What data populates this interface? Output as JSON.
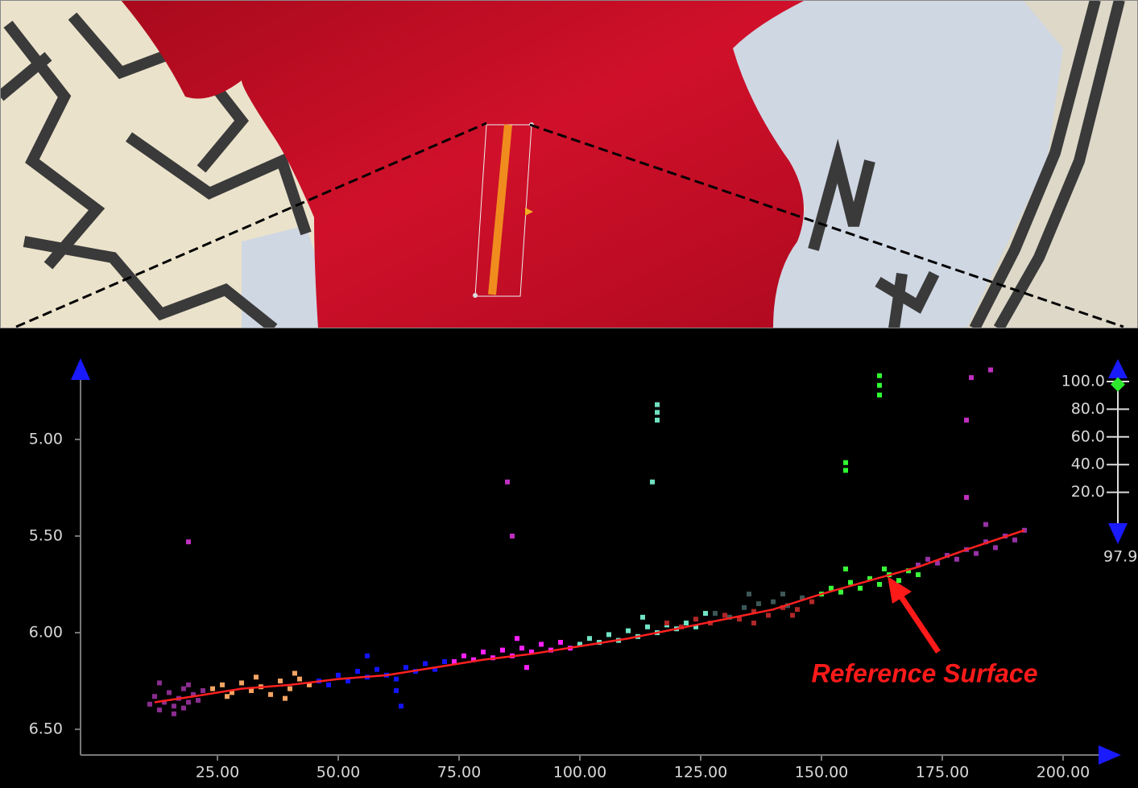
{
  "profile_chart": {
    "type": "scatter",
    "xlim": [
      -3.33,
      208.33
    ],
    "ylim": [
      6.633,
      4.642
    ],
    "xticks": [
      {
        "value": 25,
        "label": "25.00"
      },
      {
        "value": 50,
        "label": "50.00"
      },
      {
        "value": 75,
        "label": "75.00"
      },
      {
        "value": 100,
        "label": "100.00"
      },
      {
        "value": 125,
        "label": "125.00"
      },
      {
        "value": 150,
        "label": "150.00"
      },
      {
        "value": 175,
        "label": "175.00"
      },
      {
        "value": 200,
        "label": "200.00"
      }
    ],
    "yticks": [
      {
        "value": 5,
        "label": "5.00"
      },
      {
        "value": 5.5,
        "label": "5.50"
      },
      {
        "value": 6,
        "label": "6.00"
      },
      {
        "value": 6.5,
        "label": "6.50"
      }
    ],
    "series": [
      {
        "color": "#8a2d8f",
        "x": [
          11,
          12,
          13,
          14,
          15,
          16,
          17,
          18,
          19,
          20,
          21,
          22,
          13,
          16,
          19,
          18
        ],
        "y": [
          6.37,
          6.33,
          6.4,
          6.36,
          6.31,
          6.38,
          6.34,
          6.29,
          6.36,
          6.32,
          6.35,
          6.3,
          6.26,
          6.42,
          6.27,
          6.39
        ]
      },
      {
        "color": "#f4a463",
        "x": [
          24,
          26,
          28,
          30,
          32,
          34,
          36,
          38,
          40,
          42,
          44,
          27,
          33,
          39,
          41
        ],
        "y": [
          6.29,
          6.27,
          6.31,
          6.26,
          6.3,
          6.28,
          6.32,
          6.25,
          6.29,
          6.24,
          6.27,
          6.33,
          6.23,
          6.34,
          6.21
        ]
      },
      {
        "color": "#1414ff",
        "x": [
          46,
          48,
          50,
          52,
          54,
          56,
          58,
          60,
          62,
          64,
          66,
          68,
          70,
          72,
          56,
          62,
          63
        ],
        "y": [
          6.25,
          6.27,
          6.22,
          6.25,
          6.2,
          6.23,
          6.19,
          6.22,
          6.24,
          6.18,
          6.2,
          6.16,
          6.19,
          6.15,
          6.12,
          6.3,
          6.38
        ]
      },
      {
        "color": "#ff22ff",
        "x": [
          74,
          76,
          78,
          80,
          82,
          84,
          86,
          88,
          90,
          92,
          94,
          96,
          98,
          87,
          89
        ],
        "y": [
          6.15,
          6.12,
          6.14,
          6.1,
          6.13,
          6.09,
          6.12,
          6.08,
          6.1,
          6.06,
          6.09,
          6.05,
          6.08,
          6.03,
          6.18
        ]
      },
      {
        "color": "#72e4c6",
        "x": [
          100,
          102,
          104,
          106,
          108,
          110,
          112,
          114,
          116,
          118,
          120,
          122,
          124,
          113,
          126
        ],
        "y": [
          6.06,
          6.03,
          6.05,
          6.01,
          6.04,
          5.99,
          6.02,
          5.97,
          6.0,
          5.96,
          5.98,
          5.95,
          5.97,
          5.92,
          5.9
        ]
      },
      {
        "color": "#b02828",
        "x": [
          118,
          121,
          124,
          127,
          130,
          133,
          136,
          139,
          142,
          145,
          148,
          136,
          144
        ],
        "y": [
          5.95,
          5.97,
          5.93,
          5.95,
          5.91,
          5.93,
          5.89,
          5.91,
          5.87,
          5.88,
          5.84,
          5.95,
          5.91
        ]
      },
      {
        "color": "#3d5656",
        "x": [
          128,
          131,
          134,
          137,
          140,
          143,
          146,
          135,
          142
        ],
        "y": [
          5.9,
          5.92,
          5.87,
          5.85,
          5.84,
          5.86,
          5.82,
          5.8,
          5.8
        ]
      },
      {
        "color": "#3aff3a",
        "x": [
          150,
          152,
          154,
          156,
          158,
          160,
          162,
          164,
          166,
          168,
          170,
          155,
          163
        ],
        "y": [
          5.8,
          5.77,
          5.79,
          5.74,
          5.77,
          5.72,
          5.75,
          5.7,
          5.73,
          5.68,
          5.7,
          5.67,
          5.67
        ]
      },
      {
        "color": "#9632a5",
        "x": [
          170,
          172,
          174,
          176,
          178,
          180,
          182,
          184,
          186,
          188,
          190,
          192,
          184
        ],
        "y": [
          5.65,
          5.62,
          5.64,
          5.6,
          5.62,
          5.57,
          5.59,
          5.53,
          5.56,
          5.5,
          5.52,
          5.47,
          5.44
        ]
      },
      {
        "color": "#c030c0",
        "x": [
          19,
          85,
          86,
          180,
          185,
          180,
          181
        ],
        "y": [
          5.53,
          5.22,
          5.5,
          4.9,
          4.64,
          5.3,
          4.68
        ]
      },
      {
        "color": "#70e0c0",
        "x": [
          116,
          116,
          116,
          115
        ],
        "y": [
          4.82,
          4.86,
          4.9,
          5.22
        ]
      },
      {
        "color": "#30ff30",
        "x": [
          162,
          162,
          162,
          155,
          155
        ],
        "y": [
          4.67,
          4.72,
          4.77,
          5.12,
          5.16
        ]
      }
    ],
    "reference_surface": {
      "color": "#ff2020",
      "x": [
        12,
        20,
        30,
        40,
        50,
        60,
        70,
        80,
        90,
        100,
        110,
        120,
        130,
        140,
        150,
        160,
        170,
        180,
        192
      ],
      "y": [
        6.36,
        6.33,
        6.29,
        6.27,
        6.24,
        6.22,
        6.18,
        6.14,
        6.11,
        6.07,
        6.03,
        5.98,
        5.93,
        5.88,
        5.8,
        5.73,
        5.66,
        5.57,
        5.47
      ]
    }
  },
  "annotation": "Reference Surface",
  "slider": {
    "range": [
      0,
      100
    ],
    "ticks": [
      {
        "value": 20,
        "label": "20.0"
      },
      {
        "value": 40,
        "label": "40.0"
      },
      {
        "value": 60,
        "label": "60.0"
      },
      {
        "value": 80,
        "label": "80.0"
      },
      {
        "value": 100,
        "label": "100.0"
      }
    ],
    "value": 97.9
  }
}
